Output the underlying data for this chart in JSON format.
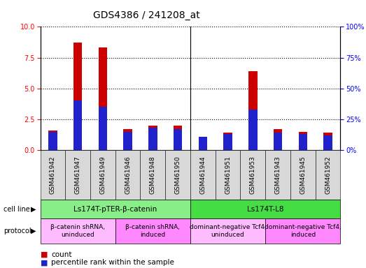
{
  "title": "GDS4386 / 241208_at",
  "samples": [
    "GSM461942",
    "GSM461947",
    "GSM461949",
    "GSM461946",
    "GSM461948",
    "GSM461950",
    "GSM461944",
    "GSM461951",
    "GSM461953",
    "GSM461943",
    "GSM461945",
    "GSM461952"
  ],
  "count_values": [
    1.6,
    8.7,
    8.3,
    1.7,
    2.0,
    2.0,
    1.1,
    1.4,
    6.4,
    1.7,
    1.5,
    1.4
  ],
  "percentile_values_scaled": [
    1.5,
    4.0,
    3.5,
    1.5,
    1.8,
    1.7,
    1.1,
    1.3,
    3.3,
    1.4,
    1.3,
    1.2
  ],
  "ylim_left": [
    0,
    10
  ],
  "ylim_right": [
    0,
    100
  ],
  "yticks_left": [
    0,
    2.5,
    5,
    7.5,
    10
  ],
  "yticks_right": [
    0,
    25,
    50,
    75,
    100
  ],
  "bar_color_red": "#cc0000",
  "bar_color_blue": "#2222cc",
  "bar_width": 0.35,
  "cell_line_groups": [
    {
      "label": "Ls174T-pTER-β-catenin",
      "start": 0,
      "end": 6,
      "color": "#88ee88"
    },
    {
      "label": "Ls174T-L8",
      "start": 6,
      "end": 12,
      "color": "#44dd44"
    }
  ],
  "protocol_groups": [
    {
      "label": "β-catenin shRNA,\nuninduced",
      "start": 0,
      "end": 3,
      "color": "#ffbbff"
    },
    {
      "label": "β-catenin shRNA,\ninduced",
      "start": 3,
      "end": 6,
      "color": "#ff88ff"
    },
    {
      "label": "dominant-negative Tcf4,\nuninduced",
      "start": 6,
      "end": 9,
      "color": "#ffbbff"
    },
    {
      "label": "dominant-negative Tcf4,\ninduced",
      "start": 9,
      "end": 12,
      "color": "#ff88ff"
    }
  ],
  "title_fontsize": 10,
  "tick_fontsize": 7,
  "annot_fontsize": 7,
  "legend_fontsize": 7.5
}
